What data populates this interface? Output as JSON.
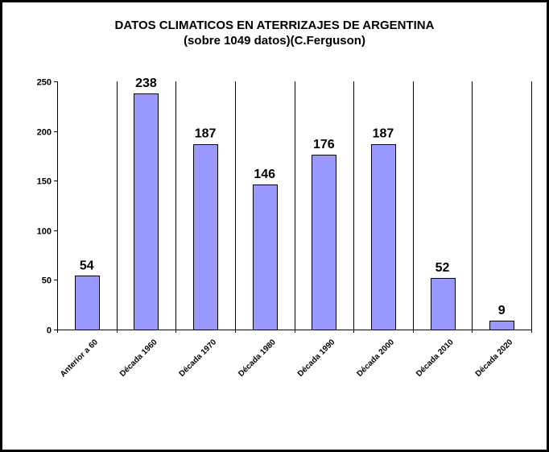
{
  "chart_data": {
    "type": "bar",
    "title": "DATOS CLIMATICOS EN ATERRIZAJES DE ARGENTINA",
    "subtitle": "(sobre 1049 datos)(C.Ferguson)",
    "categories": [
      "Anterior a 60",
      "Década 1960",
      "Década 1970",
      "Década 1980",
      "Década 1990",
      "Década 2000",
      "Década 2010",
      "Década 2020"
    ],
    "values": [
      54,
      238,
      187,
      146,
      176,
      187,
      52,
      9
    ],
    "ylim": [
      0,
      250
    ],
    "yticks": [
      0,
      50,
      100,
      150,
      200,
      250
    ],
    "grid": "vertical separators between categories",
    "legend": "none",
    "colors": {
      "bar_fill": "#9999ff",
      "bar_stroke": "#000000",
      "background": "#ffffff",
      "frame": "#000000"
    }
  }
}
